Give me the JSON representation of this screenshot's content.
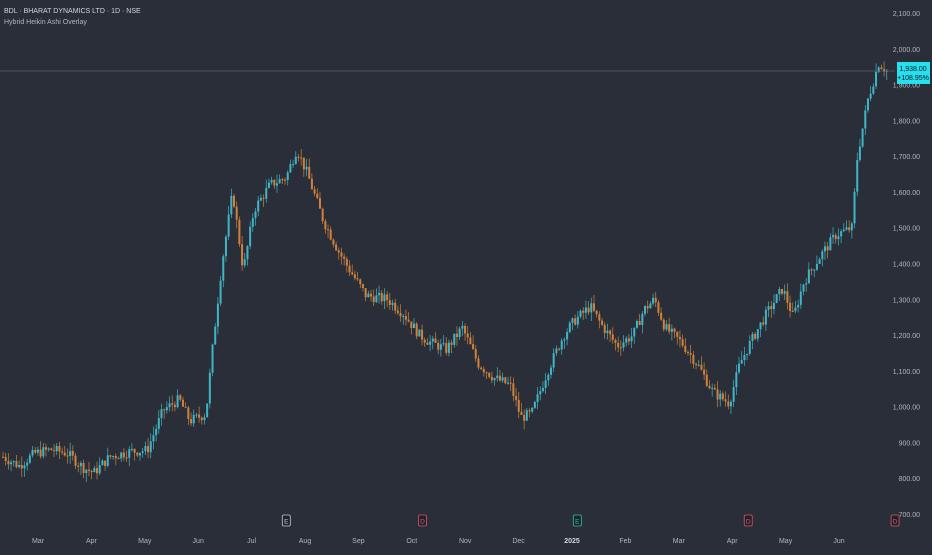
{
  "header": {
    "title": "BDL · BHARAT DYNAMICS LTD · 1D · NSE",
    "indicator": "Hybrid Heikin Ashi Overlay"
  },
  "price_label": {
    "price": "1,938.00",
    "change": "+108.95%",
    "color": "#26e0f0"
  },
  "colors": {
    "background": "#2a2e39",
    "bull": "#3fb6c6",
    "bear": "#d0823a",
    "axis_text": "#b2b5be",
    "price_line": "#5d606b"
  },
  "events": [
    {
      "label": "E",
      "month_pos": 4.65,
      "icon": "earnings-icon",
      "color": "#c8cbd2"
    },
    {
      "label": "D",
      "month_pos": 7.2,
      "icon": "dividend-icon",
      "color": "#e05563"
    },
    {
      "label": "E",
      "month_pos": 10.1,
      "icon": "earnings-icon",
      "color": "#2ec4a0"
    },
    {
      "label": "D",
      "month_pos": 13.3,
      "icon": "dividend-icon",
      "color": "#e05563"
    },
    {
      "label": "D",
      "month_pos": 16.05,
      "icon": "dividend-icon",
      "color": "#e05563"
    }
  ],
  "chart_data": {
    "type": "candlestick",
    "x_ticks": [
      "Mar",
      "Apr",
      "May",
      "Jun",
      "Jul",
      "Aug",
      "Sep",
      "Oct",
      "Nov",
      "Dec",
      "2025",
      "Feb",
      "Mar",
      "Apr",
      "May",
      "Jun"
    ],
    "y_ticks": [
      "700.00",
      "800.00",
      "900.00",
      "1,000.00",
      "1,100.00",
      "1,200.00",
      "1,300.00",
      "1,400.00",
      "1,500.00",
      "1,600.00",
      "1,700.00",
      "1,800.00",
      "1,900.00",
      "2,000.00",
      "2,100.00"
    ],
    "ylim": [
      700,
      2100
    ],
    "last_price": 1938,
    "price_path": [
      [
        0,
        860
      ],
      [
        0.3,
        835
      ],
      [
        0.6,
        870
      ],
      [
        0.9,
        880
      ],
      [
        1.2,
        870
      ],
      [
        1.5,
        830
      ],
      [
        1.7,
        815
      ],
      [
        2.0,
        860
      ],
      [
        2.4,
        875
      ],
      [
        2.7,
        878
      ],
      [
        3.0,
        990
      ],
      [
        3.3,
        1020
      ],
      [
        3.5,
        960
      ],
      [
        3.8,
        980
      ],
      [
        3.95,
        1200
      ],
      [
        4.1,
        1400
      ],
      [
        4.3,
        1600
      ],
      [
        4.5,
        1380
      ],
      [
        4.7,
        1550
      ],
      [
        5.0,
        1620
      ],
      [
        5.3,
        1640
      ],
      [
        5.5,
        1720
      ],
      [
        5.7,
        1650
      ],
      [
        6.0,
        1520
      ],
      [
        6.3,
        1430
      ],
      [
        6.5,
        1380
      ],
      [
        6.8,
        1310
      ],
      [
        7.2,
        1300
      ],
      [
        7.5,
        1260
      ],
      [
        7.8,
        1200
      ],
      [
        8.0,
        1180
      ],
      [
        8.3,
        1160
      ],
      [
        8.6,
        1220
      ],
      [
        8.9,
        1120
      ],
      [
        9.2,
        1080
      ],
      [
        9.5,
        1060
      ],
      [
        9.7,
        970
      ],
      [
        9.9,
        980
      ],
      [
        10.2,
        1100
      ],
      [
        10.5,
        1200
      ],
      [
        10.7,
        1240
      ],
      [
        11.0,
        1280
      ],
      [
        11.2,
        1230
      ],
      [
        11.5,
        1170
      ],
      [
        11.8,
        1200
      ],
      [
        12.0,
        1270
      ],
      [
        12.2,
        1300
      ],
      [
        12.4,
        1220
      ],
      [
        12.7,
        1180
      ],
      [
        13.0,
        1120
      ],
      [
        13.3,
        1040
      ],
      [
        13.6,
        1010
      ],
      [
        13.8,
        1120
      ],
      [
        14.0,
        1180
      ],
      [
        14.3,
        1260
      ],
      [
        14.6,
        1330
      ],
      [
        14.8,
        1250
      ],
      [
        15.0,
        1350
      ],
      [
        15.3,
        1420
      ],
      [
        15.6,
        1480
      ],
      [
        15.9,
        1500
      ],
      [
        16.0,
        1700
      ],
      [
        16.2,
        1860
      ],
      [
        16.4,
        1960
      ],
      [
        16.55,
        1938
      ]
    ]
  }
}
